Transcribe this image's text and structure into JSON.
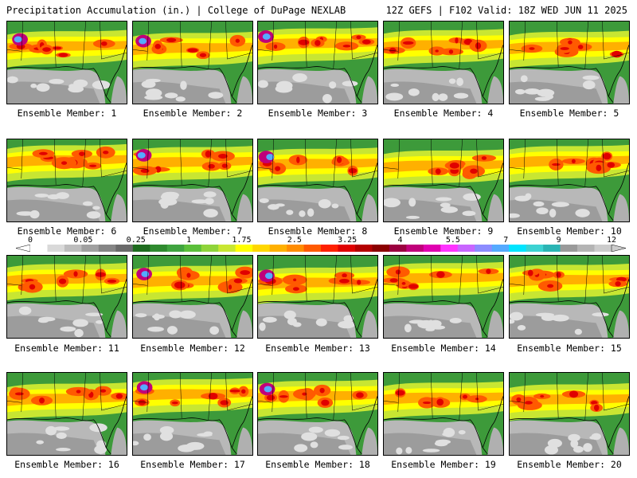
{
  "header": {
    "left": "Precipitation Accumulation (in.) | College of DuPage NEXLAB",
    "right": "12Z GEFS | F102 Valid: 18Z WED JUN 11 2025"
  },
  "caption_prefix": "Ensemble Member:",
  "members": [
    "1",
    "2",
    "3",
    "4",
    "5",
    "6",
    "7",
    "8",
    "9",
    "10",
    "11",
    "12",
    "13",
    "14",
    "15",
    "16",
    "17",
    "18",
    "19",
    "20"
  ],
  "colorbar": {
    "tick_labels": [
      "0",
      "0.05",
      "0.25",
      "1",
      "1.75",
      "2.5",
      "3.25",
      "4",
      "5.5",
      "7",
      "9",
      "12"
    ],
    "colors": [
      "#ffffff",
      "#d9d9d9",
      "#bdbdbd",
      "#a0a0a0",
      "#858585",
      "#6a6a6a",
      "#1e6b1e",
      "#2f8a2f",
      "#3fa33f",
      "#5bbf3a",
      "#8fd43a",
      "#c8e632",
      "#ffff00",
      "#ffd700",
      "#ffb000",
      "#ff8c00",
      "#ff5a00",
      "#ff2000",
      "#e00000",
      "#b40000",
      "#8b0000",
      "#9b0040",
      "#c0007a",
      "#e000b0",
      "#ff33ff",
      "#c866ff",
      "#8c8cff",
      "#55aaff",
      "#00e5ff",
      "#3cd2d2",
      "#2ab4b4",
      "#9a9a9a",
      "#b4b4b4",
      "#cccccc"
    ]
  }
}
